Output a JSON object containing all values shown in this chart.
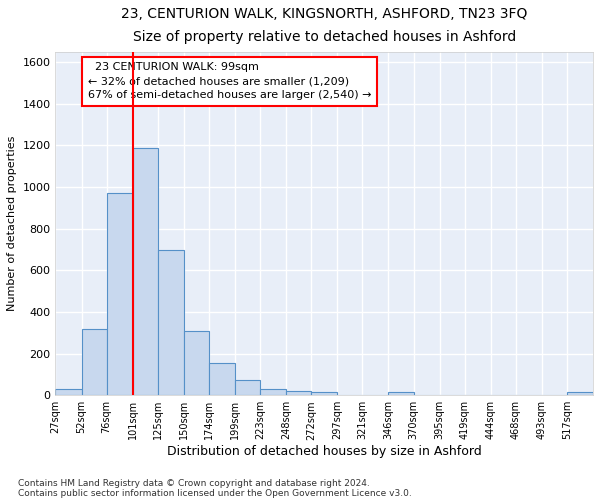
{
  "title1": "23, CENTURION WALK, KINGSNORTH, ASHFORD, TN23 3FQ",
  "title2": "Size of property relative to detached houses in Ashford",
  "xlabel": "Distribution of detached houses by size in Ashford",
  "ylabel": "Number of detached properties",
  "footnote1": "Contains HM Land Registry data © Crown copyright and database right 2024.",
  "footnote2": "Contains public sector information licensed under the Open Government Licence v3.0.",
  "annotation_line1": "23 CENTURION WALK: 99sqm",
  "annotation_line2": "← 32% of detached houses are smaller (1,209)",
  "annotation_line3": "67% of semi-detached houses are larger (2,540) →",
  "bar_color": "#c8d8ee",
  "bar_edge_color": "#5590c8",
  "bar_heights": [
    30,
    320,
    970,
    1190,
    700,
    310,
    155,
    75,
    30,
    20,
    15,
    0,
    0,
    15,
    0,
    0,
    0,
    0,
    0,
    0,
    15
  ],
  "bin_edges": [
    27,
    52,
    76,
    101,
    125,
    150,
    174,
    199,
    223,
    248,
    272,
    297,
    321,
    346,
    370,
    395,
    419,
    444,
    468,
    493,
    517,
    542
  ],
  "tick_labels": [
    "27sqm",
    "52sqm",
    "76sqm",
    "101sqm",
    "125sqm",
    "150sqm",
    "174sqm",
    "199sqm",
    "223sqm",
    "248sqm",
    "272sqm",
    "297sqm",
    "321sqm",
    "346sqm",
    "370sqm",
    "395sqm",
    "419sqm",
    "444sqm",
    "468sqm",
    "493sqm",
    "517sqm"
  ],
  "ylim": [
    0,
    1650
  ],
  "yticks": [
    0,
    200,
    400,
    600,
    800,
    1000,
    1200,
    1400,
    1600
  ],
  "vline_x": 101,
  "chart_bg": "#e8eef8",
  "fig_bg": "#ffffff",
  "grid_color": "#ffffff",
  "title1_fontsize": 10,
  "title2_fontsize": 9,
  "ylabel_fontsize": 8,
  "xlabel_fontsize": 9,
  "tick_fontsize": 7,
  "ytick_fontsize": 8,
  "footnote_fontsize": 6.5,
  "annot_fontsize": 8
}
